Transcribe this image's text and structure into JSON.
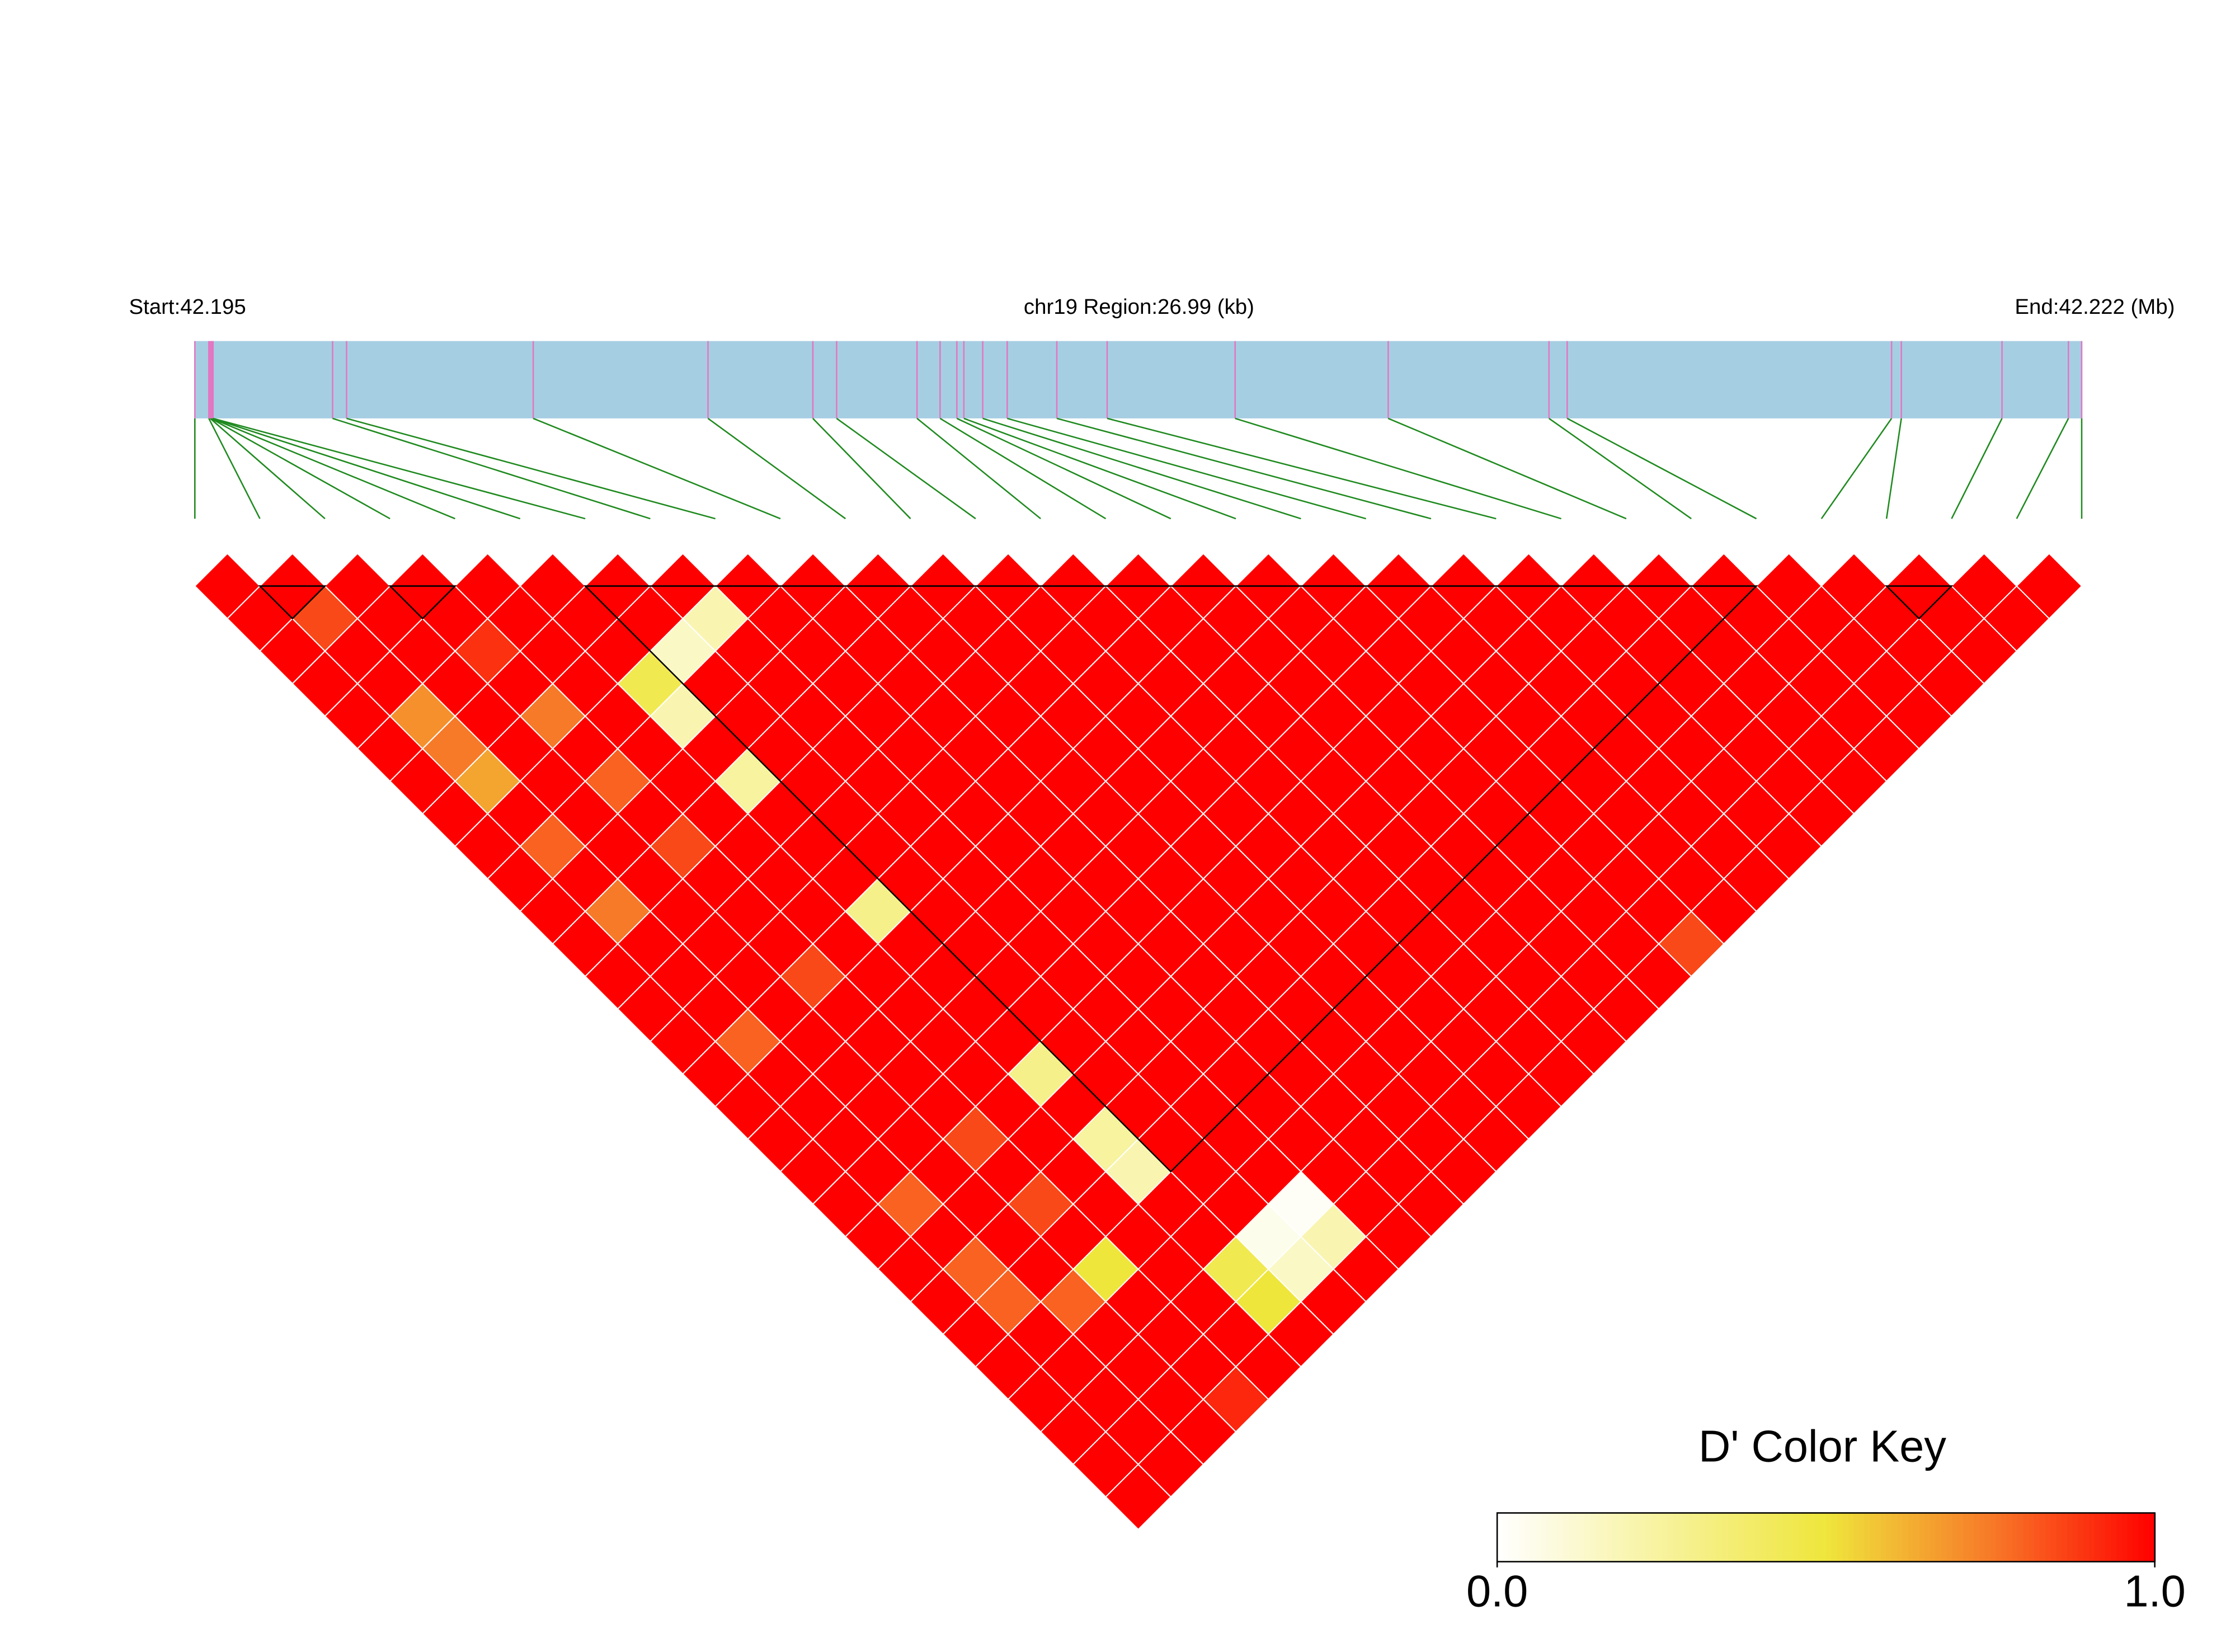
{
  "chart_data": {
    "type": "ld-heatmap",
    "start_label": "Start:42.195",
    "region_label": "chr19 Region:26.99 (kb)",
    "end_label": "End:42.222 (Mb)",
    "legend_title": "D' Color Key",
    "xlim": [
      0,
      26.99
    ],
    "positions": [
      0,
      0.2,
      0.22,
      0.23,
      0.24,
      0.25,
      0.26,
      1.97,
      2.17,
      4.84,
      7.34,
      8.84,
      9.18,
      10.33,
      10.66,
      10.9,
      11.0,
      11.27,
      11.62,
      12.33,
      13.05,
      14.88,
      17.07,
      19.37,
      19.63,
      24.27,
      24.41,
      25.85,
      26.8,
      26.99
    ],
    "values": [
      [
        1,
        1,
        1,
        1,
        1,
        1,
        1,
        1,
        1,
        1,
        1,
        1,
        1,
        1,
        1,
        1,
        1,
        1,
        1,
        1,
        1,
        1,
        1,
        1,
        1,
        1,
        1,
        1,
        1
      ],
      [
        1,
        0.85,
        1,
        1,
        0.7,
        0.75,
        0.65,
        1,
        0.8,
        1,
        0.75,
        1,
        1,
        1,
        0.8,
        1,
        1,
        1,
        1,
        0.8,
        1,
        0.8,
        0.8,
        1,
        1,
        1,
        1,
        1
      ],
      [
        1,
        1,
        1,
        1,
        1,
        1,
        1,
        1,
        1,
        1,
        1,
        1,
        1,
        1,
        1,
        1,
        1,
        1,
        1,
        1,
        1,
        1,
        0.8,
        1,
        1,
        1,
        1
      ],
      [
        1,
        1,
        0.9,
        1,
        0.75,
        1,
        0.8,
        1,
        0.85,
        1,
        1,
        1,
        0.85,
        1,
        1,
        1,
        1,
        0.85,
        1,
        0.85,
        1,
        0.5,
        1,
        1,
        1,
        0.92
      ],
      [
        1,
        1,
        1,
        1,
        1,
        1,
        1,
        1,
        1,
        1,
        1,
        1,
        1,
        1,
        1,
        1,
        1,
        1,
        1,
        1,
        1,
        1,
        1,
        1,
        1
      ],
      [
        1,
        1,
        1,
        0.45,
        0.2,
        1,
        0.25,
        1,
        1,
        1,
        0.3,
        1,
        1,
        1,
        1,
        0.3,
        1,
        0.25,
        0.2,
        1,
        1,
        0.45,
        0.5,
        1
      ],
      [
        1,
        1,
        0.15,
        1,
        1,
        1,
        1,
        1,
        1,
        1,
        1,
        1,
        1,
        1,
        1,
        1,
        1,
        1,
        1,
        1,
        0.05,
        0.15,
        1
      ],
      [
        1,
        0.2,
        1,
        1,
        1,
        1,
        1,
        1,
        1,
        1,
        1,
        1,
        1,
        1,
        1,
        1,
        1,
        1,
        1,
        0.02,
        0.2,
        1
      ],
      [
        1,
        1,
        1,
        1,
        1,
        1,
        1,
        1,
        1,
        1,
        1,
        1,
        1,
        1,
        1,
        1,
        1,
        1,
        1,
        1,
        1
      ],
      [
        1,
        1,
        1,
        1,
        1,
        1,
        1,
        1,
        1,
        1,
        1,
        1,
        1,
        1,
        1,
        1,
        1,
        1,
        1,
        1
      ],
      [
        1,
        1,
        1,
        1,
        1,
        1,
        1,
        1,
        1,
        1,
        1,
        1,
        1,
        1,
        1,
        1,
        1,
        1,
        1
      ],
      [
        1,
        1,
        1,
        1,
        1,
        1,
        1,
        1,
        1,
        1,
        1,
        1,
        1,
        1,
        1,
        1,
        1,
        1
      ],
      [
        1,
        1,
        1,
        1,
        1,
        1,
        1,
        1,
        1,
        1,
        1,
        1,
        1,
        1,
        1,
        1,
        1
      ],
      [
        1,
        1,
        1,
        1,
        1,
        1,
        1,
        1,
        1,
        1,
        1,
        1,
        1,
        1,
        1,
        1
      ],
      [
        1,
        1,
        1,
        1,
        1,
        1,
        1,
        1,
        1,
        1,
        1,
        1,
        1,
        1,
        1
      ],
      [
        1,
        1,
        1,
        1,
        1,
        1,
        1,
        1,
        1,
        1,
        1,
        1,
        1,
        1
      ],
      [
        1,
        1,
        1,
        1,
        1,
        1,
        1,
        1,
        1,
        1,
        1,
        1,
        1
      ],
      [
        1,
        1,
        1,
        1,
        1,
        1,
        1,
        1,
        1,
        1,
        1,
        0.85
      ],
      [
        1,
        1,
        1,
        1,
        1,
        1,
        1,
        1,
        1,
        1,
        1
      ],
      [
        1,
        1,
        1,
        1,
        1,
        1,
        1,
        1,
        1,
        1
      ],
      [
        1,
        1,
        1,
        1,
        1,
        1,
        1,
        1,
        1
      ],
      [
        1,
        1,
        1,
        1,
        1,
        1,
        1,
        1
      ],
      [
        1,
        1,
        1,
        1,
        1,
        1,
        1
      ],
      [
        1,
        1,
        1,
        1,
        1,
        1
      ],
      [
        1,
        1,
        1,
        1,
        1
      ],
      [
        1,
        1,
        1,
        1
      ],
      [
        1,
        1,
        1
      ],
      [
        1,
        1
      ],
      [
        1
      ]
    ],
    "blocks": [
      [
        1,
        2
      ],
      [
        3,
        4
      ],
      [
        6,
        24
      ],
      [
        26,
        27
      ]
    ],
    "bar_color": "#a6cee3",
    "snp_tick_color": "#e377c2",
    "connector_color": "#1f8a1f",
    "color_stops": [
      [
        0,
        "#ffffff"
      ],
      [
        0.5,
        "#efe63c"
      ],
      [
        0.75,
        "#f77a28"
      ],
      [
        1,
        "#ff0000"
      ]
    ],
    "colorbar_lim": [
      0,
      1
    ],
    "colorbar_ticks": [
      {
        "value": 0,
        "label": "0.0"
      },
      {
        "value": 1,
        "label": "1.0"
      }
    ]
  }
}
